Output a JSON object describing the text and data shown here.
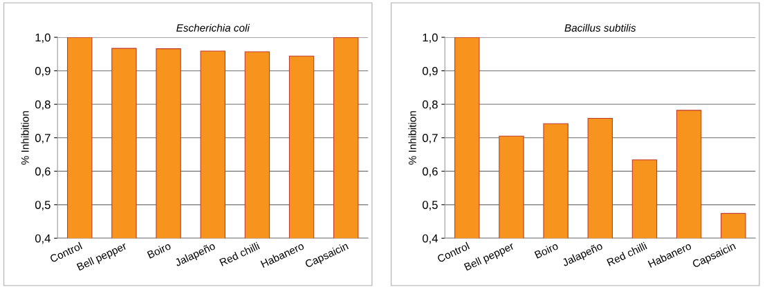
{
  "chart_data": [
    {
      "type": "bar",
      "title": "Escherichia coli",
      "ylabel": "% Inhibition",
      "categories": [
        "Control",
        "Bell pepper",
        "Boiro",
        "Jalapeño",
        "Red chilli",
        "Habanero",
        "Capsaicin"
      ],
      "values": [
        1.0,
        0.967,
        0.966,
        0.959,
        0.957,
        0.944,
        0.999
      ],
      "color": "#f7941d",
      "ylim": [
        0.4,
        1.0
      ],
      "yticks": [
        {
          "value": 0.4,
          "label": "0,4"
        },
        {
          "value": 0.5,
          "label": "0,5"
        },
        {
          "value": 0.6,
          "label": "0,6"
        },
        {
          "value": 0.7,
          "label": "0,7"
        },
        {
          "value": 0.8,
          "label": "0,8"
        },
        {
          "value": 0.9,
          "label": "0,9"
        },
        {
          "value": 1.0,
          "label": "1,0"
        }
      ],
      "grid": "y"
    },
    {
      "type": "bar",
      "title": "Bacillus subtilis",
      "ylabel": "% Inhibition",
      "categories": [
        "Control",
        "Bell pepper",
        "Boiro",
        "Jalapeño",
        "Red chilli",
        "Habanero",
        "Capsaicin"
      ],
      "values": [
        1.0,
        0.705,
        0.742,
        0.758,
        0.634,
        0.782,
        0.474
      ],
      "color": "#f7941d",
      "ylim": [
        0.4,
        1.0
      ],
      "yticks": [
        {
          "value": 0.4,
          "label": "0,4"
        },
        {
          "value": 0.5,
          "label": "0,5"
        },
        {
          "value": 0.6,
          "label": "0,6"
        },
        {
          "value": 0.7,
          "label": "0,7"
        },
        {
          "value": 0.8,
          "label": "0,8"
        },
        {
          "value": 0.9,
          "label": "0,9"
        },
        {
          "value": 1.0,
          "label": "1,0"
        }
      ],
      "grid": "y"
    }
  ]
}
